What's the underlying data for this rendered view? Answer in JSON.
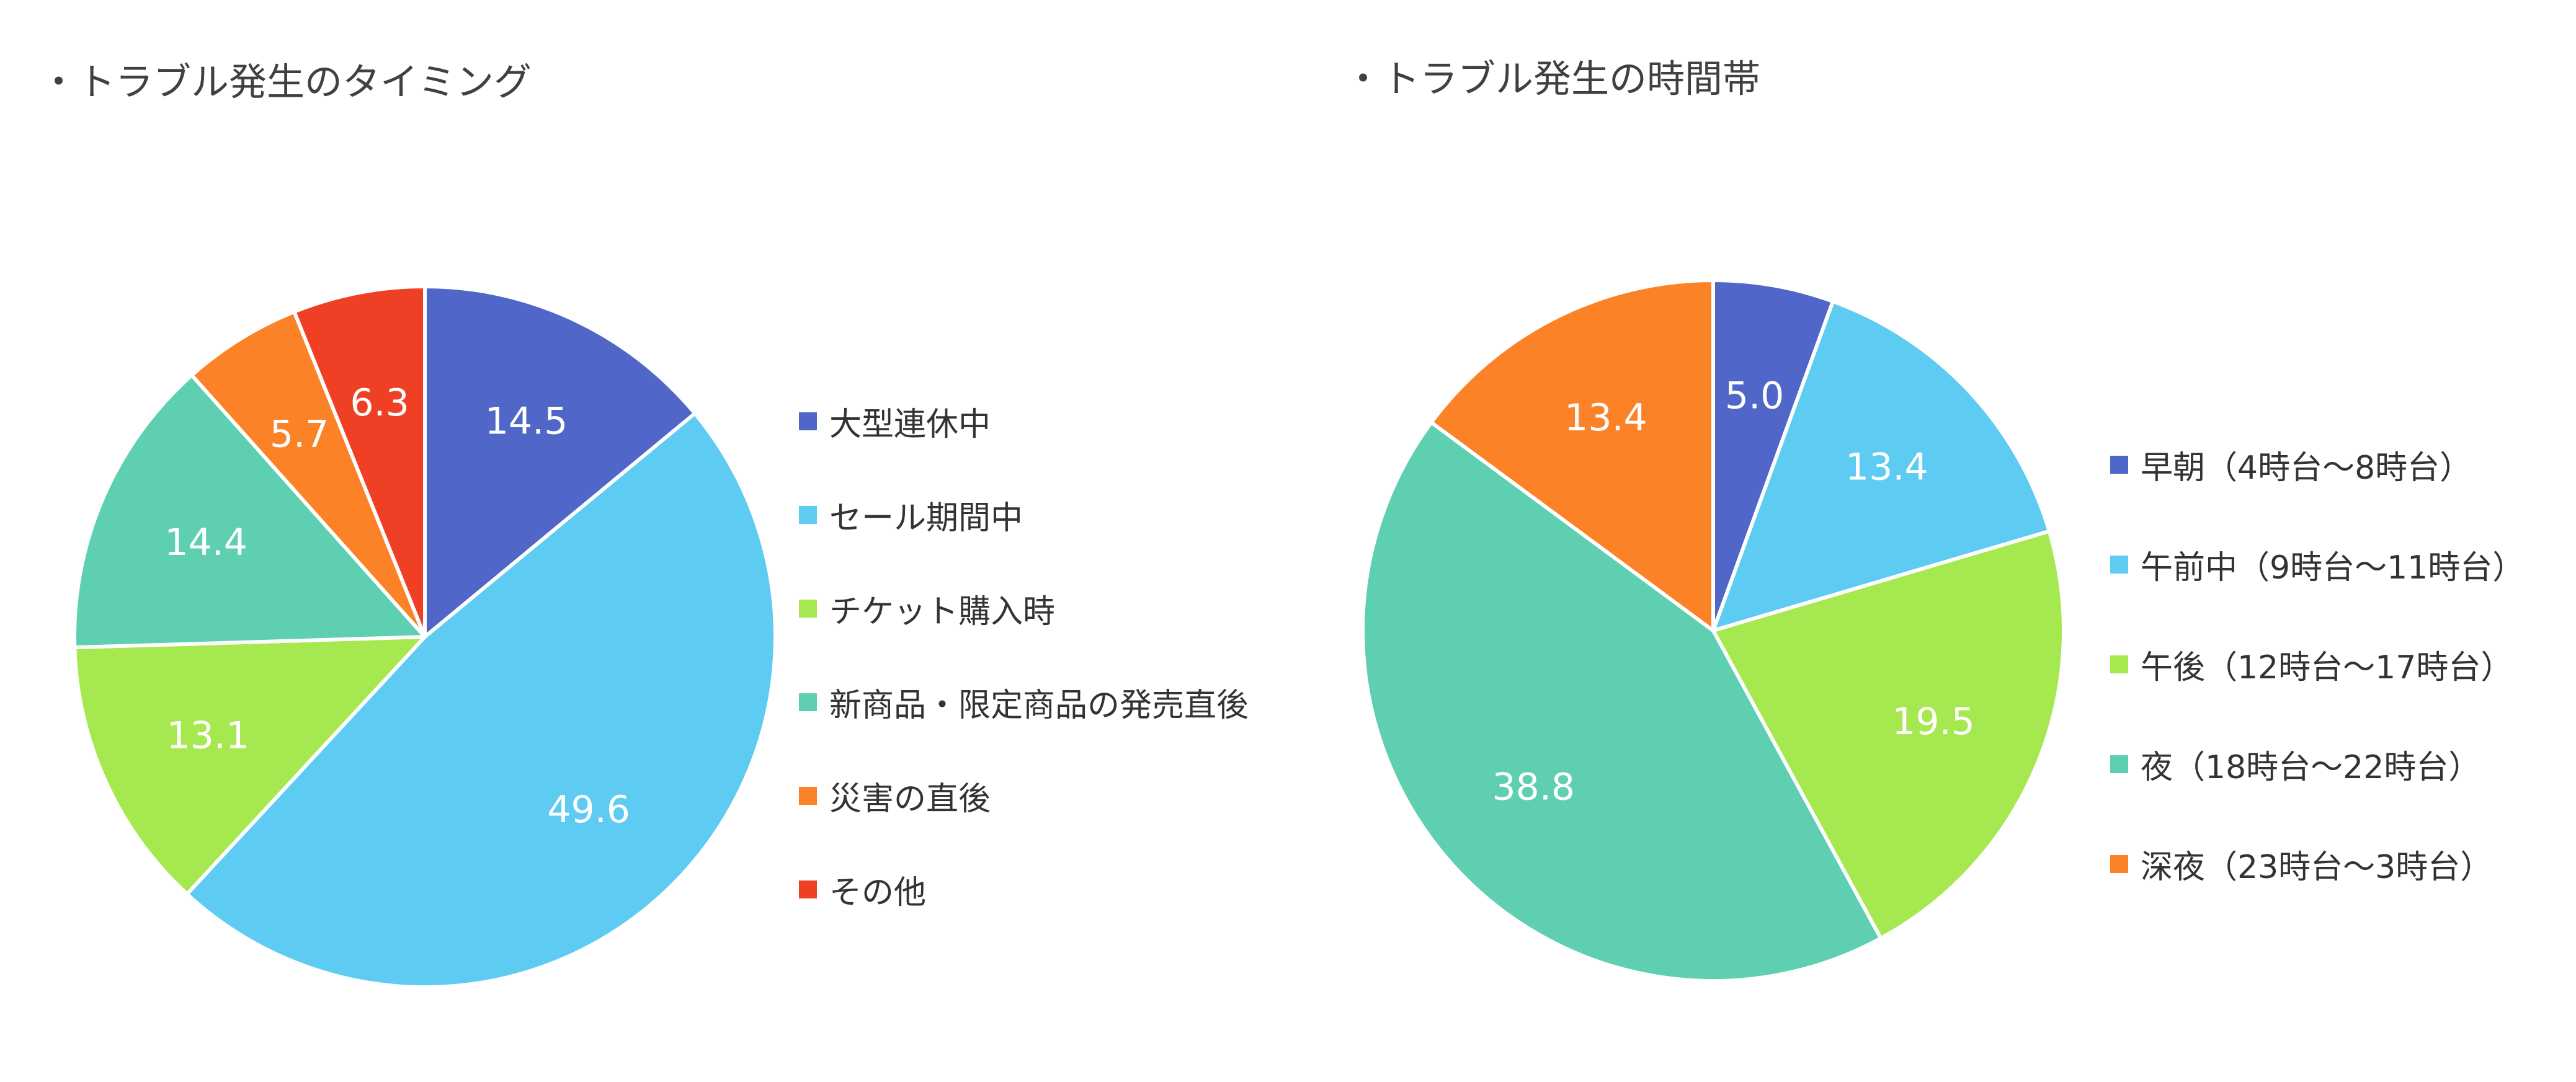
{
  "chart_data": [
    {
      "type": "pie",
      "title": "・トラブル発生のタイミング",
      "categories": [
        "大型連休中",
        "セール期間中",
        "チケット購入時",
        "新商品・限定商品の発売直後",
        "災害の直後",
        "その他"
      ],
      "values": [
        14.5,
        49.6,
        13.1,
        14.4,
        5.7,
        6.3
      ],
      "value_labels": [
        "14.5",
        "49.6",
        "13.1",
        "14.4",
        "5.7",
        "6.3"
      ],
      "colors": [
        "#5066c8",
        "#5ecbf2",
        "#a6e84f",
        "#5ecfb1",
        "#fb8227",
        "#ef4026"
      ],
      "legend_position": "right"
    },
    {
      "type": "pie",
      "title": "・トラブル発生の時間帯",
      "categories": [
        "早朝（4時台～8時台）",
        "午前中（9時台～11時台）",
        "午後（12時台～17時台）",
        "夜（18時台～22時台）",
        "深夜（23時台～3時台）"
      ],
      "values": [
        5.0,
        13.4,
        19.5,
        38.8,
        13.4
      ],
      "value_labels": [
        "5.0",
        "13.4",
        "19.5",
        "38.8",
        "13.4"
      ],
      "colors": [
        "#5066c8",
        "#5ecbf2",
        "#a6e84f",
        "#5ecfb1",
        "#fb8227"
      ],
      "legend_position": "right"
    }
  ]
}
